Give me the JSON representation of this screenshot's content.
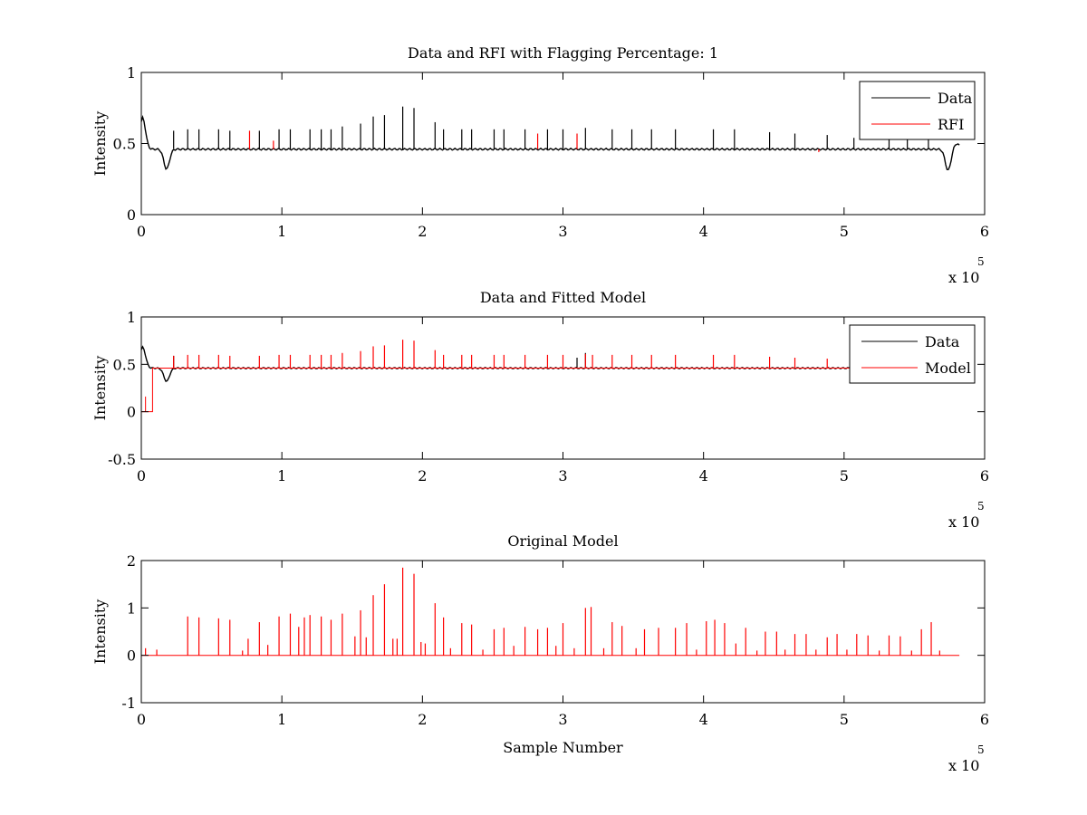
{
  "chart_data": [
    {
      "type": "line",
      "title": "Data and RFI with Flagging Percentage: 1",
      "xlabel": "",
      "ylabel": "Intensity",
      "xlim": [
        0,
        6
      ],
      "ylim": [
        0,
        1
      ],
      "x_multiplier_label": "x 10",
      "x_multiplier_exponent": "5",
      "xticks": [
        0,
        1,
        2,
        3,
        4,
        5,
        6
      ],
      "yticks": [
        0,
        0.5,
        1
      ],
      "tick_labels_x": [
        "0",
        "1",
        "2",
        "3",
        "4",
        "5",
        "6"
      ],
      "tick_labels_y": [
        "0",
        "0.5",
        "1"
      ],
      "legend": {
        "position": "top-right",
        "entries": [
          {
            "name": "Data",
            "color": "#000000"
          },
          {
            "name": "RFI",
            "color": "#ff0000"
          }
        ]
      },
      "baseline": {
        "x_start": 0.0,
        "x_end": 5.82,
        "y": 0.46,
        "dips": [
          {
            "x": 0.01,
            "shape": "bump",
            "y_peak": 0.68
          },
          {
            "x": 0.18,
            "shape": "dip",
            "y_min": 0.32
          },
          {
            "x": 5.74,
            "shape": "dip",
            "y_min": 0.31
          },
          {
            "x": 5.8,
            "shape": "bump",
            "y_peak": 0.5
          }
        ]
      },
      "series": [
        {
          "name": "Data",
          "color": "#000000",
          "spikes": [
            [
              0.23,
              0.59
            ],
            [
              0.33,
              0.6
            ],
            [
              0.41,
              0.6
            ],
            [
              0.55,
              0.6
            ],
            [
              0.63,
              0.59
            ],
            [
              0.84,
              0.59
            ],
            [
              0.98,
              0.6
            ],
            [
              1.06,
              0.6
            ],
            [
              1.2,
              0.6
            ],
            [
              1.28,
              0.6
            ],
            [
              1.35,
              0.6
            ],
            [
              1.43,
              0.62
            ],
            [
              1.56,
              0.64
            ],
            [
              1.65,
              0.69
            ],
            [
              1.73,
              0.7
            ],
            [
              1.86,
              0.76
            ],
            [
              1.94,
              0.75
            ],
            [
              2.09,
              0.65
            ],
            [
              2.15,
              0.6
            ],
            [
              2.28,
              0.6
            ],
            [
              2.35,
              0.6
            ],
            [
              2.51,
              0.6
            ],
            [
              2.58,
              0.6
            ],
            [
              2.73,
              0.6
            ],
            [
              2.89,
              0.6
            ],
            [
              3.0,
              0.6
            ],
            [
              3.16,
              0.61
            ],
            [
              3.35,
              0.6
            ],
            [
              3.49,
              0.6
            ],
            [
              3.63,
              0.6
            ],
            [
              3.8,
              0.6
            ],
            [
              4.07,
              0.6
            ],
            [
              4.22,
              0.6
            ],
            [
              4.47,
              0.58
            ],
            [
              4.65,
              0.57
            ],
            [
              4.88,
              0.56
            ],
            [
              5.07,
              0.54
            ],
            [
              5.32,
              0.54
            ],
            [
              5.45,
              0.53
            ],
            [
              5.6,
              0.55
            ]
          ]
        },
        {
          "name": "RFI",
          "color": "#ff0000",
          "spikes": [
            [
              0.77,
              0.59
            ],
            [
              0.94,
              0.52
            ],
            [
              2.82,
              0.57
            ],
            [
              3.1,
              0.57
            ],
            [
              4.82,
              0.44
            ]
          ]
        }
      ]
    },
    {
      "type": "line",
      "title": "Data and Fitted Model",
      "xlabel": "",
      "ylabel": "Intensity",
      "xlim": [
        0,
        6
      ],
      "ylim": [
        -0.5,
        1
      ],
      "x_multiplier_label": "x 10",
      "x_multiplier_exponent": "5",
      "xticks": [
        0,
        1,
        2,
        3,
        4,
        5,
        6
      ],
      "yticks": [
        -0.5,
        0,
        0.5,
        1
      ],
      "tick_labels_x": [
        "0",
        "1",
        "2",
        "3",
        "4",
        "5",
        "6"
      ],
      "tick_labels_y": [
        "-0.5",
        "0",
        "0.5",
        "1"
      ],
      "legend": {
        "position": "top-right",
        "entries": [
          {
            "name": "Data",
            "color": "#000000"
          },
          {
            "name": "Model",
            "color": "#ff0000"
          }
        ]
      },
      "baseline": {
        "x_start": 0.0,
        "x_end": 5.82,
        "y": 0.46,
        "dips": [
          {
            "x": 0.01,
            "shape": "bump",
            "y_peak": 0.68
          },
          {
            "x": 0.18,
            "shape": "dip",
            "y_min": 0.32
          }
        ]
      },
      "model_step": {
        "x_start": 0.0,
        "x_end": 0.08,
        "y": 0.0,
        "spike_x": 0.03,
        "spike_y": 0.16
      },
      "series": [
        {
          "name": "Data",
          "color": "#000000",
          "spikes": [
            [
              0.23,
              0.59
            ],
            [
              3.16,
              0.62
            ],
            [
              3.1,
              0.57
            ]
          ]
        },
        {
          "name": "Model",
          "color": "#ff0000",
          "spikes": [
            [
              0.23,
              0.59
            ],
            [
              0.33,
              0.6
            ],
            [
              0.41,
              0.6
            ],
            [
              0.55,
              0.6
            ],
            [
              0.63,
              0.59
            ],
            [
              0.84,
              0.59
            ],
            [
              0.98,
              0.6
            ],
            [
              1.06,
              0.6
            ],
            [
              1.2,
              0.6
            ],
            [
              1.28,
              0.6
            ],
            [
              1.35,
              0.6
            ],
            [
              1.43,
              0.62
            ],
            [
              1.56,
              0.64
            ],
            [
              1.65,
              0.69
            ],
            [
              1.73,
              0.7
            ],
            [
              1.86,
              0.76
            ],
            [
              1.94,
              0.75
            ],
            [
              2.09,
              0.65
            ],
            [
              2.15,
              0.6
            ],
            [
              2.28,
              0.6
            ],
            [
              2.35,
              0.6
            ],
            [
              2.51,
              0.6
            ],
            [
              2.58,
              0.6
            ],
            [
              2.73,
              0.6
            ],
            [
              2.89,
              0.6
            ],
            [
              3.0,
              0.6
            ],
            [
              3.16,
              0.61
            ],
            [
              3.21,
              0.6
            ],
            [
              3.35,
              0.6
            ],
            [
              3.49,
              0.6
            ],
            [
              3.63,
              0.6
            ],
            [
              3.8,
              0.6
            ],
            [
              4.07,
              0.6
            ],
            [
              4.22,
              0.6
            ],
            [
              4.47,
              0.58
            ],
            [
              4.65,
              0.57
            ],
            [
              4.88,
              0.56
            ],
            [
              5.07,
              0.54
            ],
            [
              5.32,
              0.54
            ],
            [
              5.45,
              0.53
            ],
            [
              5.6,
              0.55
            ]
          ]
        }
      ]
    },
    {
      "type": "line",
      "title": "Original Model",
      "xlabel": "Sample Number",
      "ylabel": "Intensity",
      "xlim": [
        0,
        6
      ],
      "ylim": [
        -1,
        2
      ],
      "x_multiplier_label": "x 10",
      "x_multiplier_exponent": "5",
      "xticks": [
        0,
        1,
        2,
        3,
        4,
        5,
        6
      ],
      "yticks": [
        -1,
        0,
        1,
        2
      ],
      "tick_labels_x": [
        "0",
        "1",
        "2",
        "3",
        "4",
        "5",
        "6"
      ],
      "tick_labels_y": [
        "-1",
        "0",
        "1",
        "2"
      ],
      "baseline": {
        "x_start": 0.0,
        "x_end": 5.82,
        "y": 0.0
      },
      "series": [
        {
          "name": "",
          "color": "#ff0000",
          "spikes": [
            [
              0.03,
              0.15
            ],
            [
              0.11,
              0.12
            ],
            [
              0.33,
              0.82
            ],
            [
              0.41,
              0.8
            ],
            [
              0.55,
              0.78
            ],
            [
              0.63,
              0.75
            ],
            [
              0.72,
              0.1
            ],
            [
              0.76,
              0.35
            ],
            [
              0.84,
              0.7
            ],
            [
              0.9,
              0.22
            ],
            [
              0.98,
              0.82
            ],
            [
              1.06,
              0.88
            ],
            [
              1.12,
              0.6
            ],
            [
              1.16,
              0.8
            ],
            [
              1.2,
              0.85
            ],
            [
              1.28,
              0.82
            ],
            [
              1.35,
              0.75
            ],
            [
              1.43,
              0.88
            ],
            [
              1.52,
              0.4
            ],
            [
              1.56,
              0.95
            ],
            [
              1.6,
              0.38
            ],
            [
              1.65,
              1.27
            ],
            [
              1.73,
              1.5
            ],
            [
              1.79,
              0.35
            ],
            [
              1.82,
              0.35
            ],
            [
              1.86,
              1.85
            ],
            [
              1.94,
              1.72
            ],
            [
              1.99,
              0.28
            ],
            [
              2.02,
              0.25
            ],
            [
              2.09,
              1.1
            ],
            [
              2.15,
              0.8
            ],
            [
              2.2,
              0.15
            ],
            [
              2.28,
              0.68
            ],
            [
              2.35,
              0.65
            ],
            [
              2.43,
              0.12
            ],
            [
              2.51,
              0.55
            ],
            [
              2.58,
              0.58
            ],
            [
              2.65,
              0.2
            ],
            [
              2.73,
              0.6
            ],
            [
              2.82,
              0.55
            ],
            [
              2.89,
              0.58
            ],
            [
              2.95,
              0.2
            ],
            [
              3.0,
              0.68
            ],
            [
              3.08,
              0.15
            ],
            [
              3.16,
              1.0
            ],
            [
              3.2,
              1.02
            ],
            [
              3.29,
              0.15
            ],
            [
              3.35,
              0.7
            ],
            [
              3.42,
              0.62
            ],
            [
              3.52,
              0.15
            ],
            [
              3.58,
              0.55
            ],
            [
              3.68,
              0.58
            ],
            [
              3.8,
              0.58
            ],
            [
              3.88,
              0.68
            ],
            [
              3.95,
              0.12
            ],
            [
              4.02,
              0.72
            ],
            [
              4.08,
              0.75
            ],
            [
              4.15,
              0.68
            ],
            [
              4.23,
              0.25
            ],
            [
              4.3,
              0.58
            ],
            [
              4.38,
              0.1
            ],
            [
              4.44,
              0.5
            ],
            [
              4.52,
              0.5
            ],
            [
              4.58,
              0.12
            ],
            [
              4.65,
              0.45
            ],
            [
              4.73,
              0.45
            ],
            [
              4.8,
              0.12
            ],
            [
              4.88,
              0.38
            ],
            [
              4.95,
              0.45
            ],
            [
              5.02,
              0.12
            ],
            [
              5.09,
              0.45
            ],
            [
              5.17,
              0.42
            ],
            [
              5.25,
              0.1
            ],
            [
              5.32,
              0.42
            ],
            [
              5.4,
              0.4
            ],
            [
              5.48,
              0.1
            ],
            [
              5.55,
              0.55
            ],
            [
              5.62,
              0.7
            ],
            [
              5.68,
              0.1
            ]
          ]
        }
      ]
    }
  ]
}
